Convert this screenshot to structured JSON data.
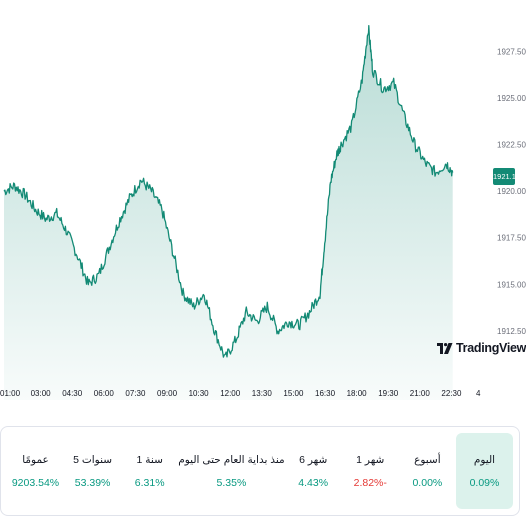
{
  "chart_data": {
    "type": "area",
    "symbol_price": "1921.18",
    "y_ticks": [
      "1927.50",
      "1925.00",
      "1922.50",
      "1920.00",
      "1917.50",
      "1915.00",
      "1912.50"
    ],
    "y_tick_values": [
      1927.5,
      1925.0,
      1922.5,
      1920.0,
      1917.5,
      1915.0,
      1912.5
    ],
    "ylim": [
      1910.5,
      1929.2
    ],
    "x_ticks": [
      "01:00",
      "03:00",
      "04:30",
      "06:00",
      "07:30",
      "09:00",
      "10:30",
      "12:00",
      "13:30",
      "15:00",
      "16:30",
      "18:00",
      "19:30",
      "21:00",
      "22:30",
      "4"
    ],
    "x_tick_values": [
      0,
      1.5,
      3,
      4.5,
      6,
      7.5,
      9,
      10.5,
      12,
      13.5,
      15,
      16.5,
      18,
      19.5,
      21,
      22.5
    ],
    "x_unit": "hours since 01:00",
    "series": [
      {
        "x": [
          0,
          0.5,
          1,
          1.5,
          2,
          2.5,
          3,
          3.5,
          4,
          4.5,
          5,
          5.5,
          6,
          6.5,
          7,
          7.5,
          8,
          8.5,
          9,
          9.5,
          10,
          10.5,
          11,
          11.5,
          12,
          12.5,
          13,
          13.5,
          14,
          14.5,
          15,
          15.2,
          15.5,
          15.8,
          16,
          16.5,
          17,
          17.3,
          17.5,
          18,
          18.5,
          19,
          19.5,
          20,
          20.5,
          21,
          21.3
        ],
        "values": [
          1920.0,
          1920.3,
          1919.8,
          1919.0,
          1918.5,
          1918.8,
          1917.8,
          1916.5,
          1915.0,
          1915.5,
          1917.0,
          1918.5,
          1919.7,
          1920.6,
          1920.0,
          1919.0,
          1916.8,
          1914.5,
          1913.8,
          1914.5,
          1912.5,
          1911.0,
          1912.0,
          1913.5,
          1913.0,
          1913.8,
          1912.5,
          1913.0,
          1912.8,
          1913.5,
          1914.5,
          1917.0,
          1920.5,
          1922.0,
          1922.5,
          1923.5,
          1926.0,
          1928.8,
          1926.5,
          1925.5,
          1925.8,
          1924.0,
          1922.5,
          1921.5,
          1921.0,
          1921.5,
          1921.0
        ]
      }
    ],
    "line_color": "#138a75",
    "grid": false
  },
  "branding": {
    "logo_text": "TradingView"
  },
  "periods": [
    {
      "label": "اليوم",
      "value": "0.09%",
      "active": true,
      "negative": false
    },
    {
      "label": "أسبوع",
      "value": "0.00%",
      "active": false,
      "negative": false
    },
    {
      "label": "1 شهر",
      "value": "2.82%-",
      "active": false,
      "negative": true
    },
    {
      "label": "6 شهر",
      "value": "4.43%",
      "active": false,
      "negative": false
    },
    {
      "label": "منذ بداية العام حتى اليوم",
      "value": "5.35%",
      "active": false,
      "negative": false
    },
    {
      "label": "1 سنة",
      "value": "6.31%",
      "active": false,
      "negative": false
    },
    {
      "label": "5 سنوات",
      "value": "53.39%",
      "active": false,
      "negative": false
    },
    {
      "label": "عمومًا",
      "value": "9203.54%",
      "active": false,
      "negative": false
    }
  ],
  "colors": {
    "positive": "#089981",
    "negative": "#e53935",
    "accent": "#138a75",
    "active_bg": "#dcf2ec"
  }
}
